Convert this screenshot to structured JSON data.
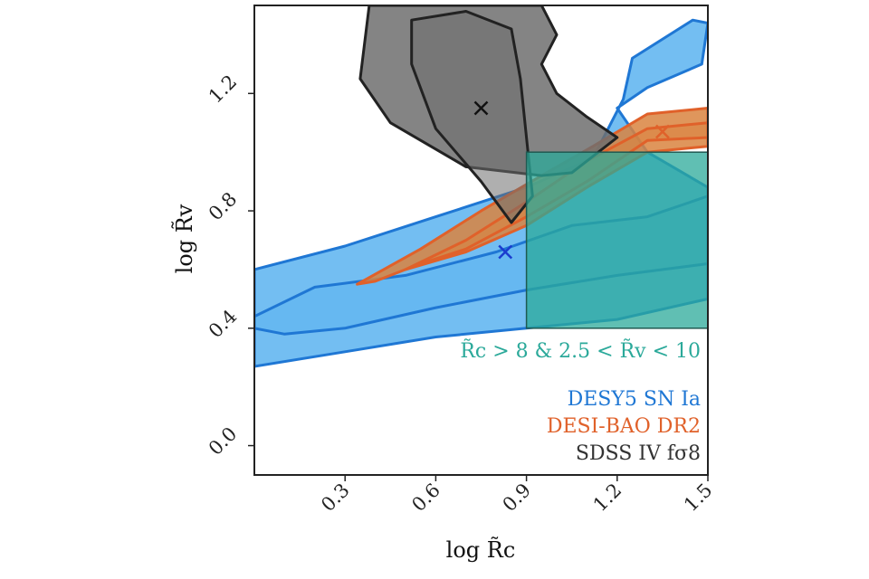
{
  "chart_data": {
    "type": "contour",
    "title": "",
    "xlabel": "log R̃c",
    "ylabel": "log R̃v",
    "xlim": [
      0.0,
      1.5
    ],
    "ylim": [
      -0.1,
      1.5
    ],
    "xticks": [
      0.3,
      0.6,
      0.9,
      1.2,
      1.5
    ],
    "xtick_labels": [
      "0.3",
      "0.6",
      "0.9",
      "1.2",
      "1.5"
    ],
    "yticks": [
      0.0,
      0.4,
      0.8,
      1.2
    ],
    "ytick_labels": [
      "0.0",
      "0.4",
      "0.8",
      "1.2"
    ],
    "grid": false,
    "legend_position": "bottom-right",
    "series": [
      {
        "name": "DESY5 SN Ia",
        "color": "#1f77d4",
        "fill": "#5bb3f0",
        "best_fit": {
          "x": 0.83,
          "y": 0.66
        },
        "contours": {
          "outer": [
            [
              0.0,
              0.6
            ],
            [
              0.3,
              0.68
            ],
            [
              0.6,
              0.78
            ],
            [
              0.9,
              0.88
            ],
            [
              1.12,
              0.98
            ],
            [
              1.22,
              1.18
            ],
            [
              1.25,
              1.32
            ],
            [
              1.45,
              1.45
            ],
            [
              1.5,
              1.44
            ],
            [
              1.48,
              1.3
            ],
            [
              1.3,
              1.22
            ],
            [
              1.2,
              1.15
            ],
            [
              1.3,
              1.0
            ],
            [
              1.5,
              0.88
            ],
            [
              1.5,
              0.5
            ],
            [
              1.2,
              0.43
            ],
            [
              0.9,
              0.4
            ],
            [
              0.6,
              0.37
            ],
            [
              0.3,
              0.32
            ],
            [
              0.0,
              0.27
            ]
          ],
          "inner": [
            [
              0.0,
              0.44
            ],
            [
              0.2,
              0.54
            ],
            [
              0.5,
              0.58
            ],
            [
              0.8,
              0.66
            ],
            [
              1.05,
              0.75
            ],
            [
              1.3,
              0.78
            ],
            [
              1.5,
              0.85
            ],
            [
              1.5,
              0.62
            ],
            [
              1.2,
              0.58
            ],
            [
              0.9,
              0.53
            ],
            [
              0.6,
              0.47
            ],
            [
              0.3,
              0.4
            ],
            [
              0.1,
              0.38
            ],
            [
              0.0,
              0.4
            ]
          ]
        }
      },
      {
        "name": "DESI-BAO DR2",
        "color": "#e0612a",
        "fill": "#d9843f",
        "best_fit": {
          "x": 1.35,
          "y": 1.07
        },
        "contours": {
          "outer": [
            [
              0.34,
              0.55
            ],
            [
              0.55,
              0.67
            ],
            [
              0.75,
              0.8
            ],
            [
              0.95,
              0.92
            ],
            [
              1.12,
              1.02
            ],
            [
              1.3,
              1.13
            ],
            [
              1.5,
              1.15
            ],
            [
              1.5,
              1.02
            ],
            [
              1.3,
              1.0
            ],
            [
              1.1,
              0.88
            ],
            [
              0.9,
              0.75
            ],
            [
              0.7,
              0.66
            ],
            [
              0.5,
              0.6
            ],
            [
              0.4,
              0.56
            ]
          ],
          "inner": [
            [
              0.5,
              0.6
            ],
            [
              0.7,
              0.7
            ],
            [
              0.9,
              0.83
            ],
            [
              1.1,
              0.97
            ],
            [
              1.3,
              1.08
            ],
            [
              1.5,
              1.1
            ],
            [
              1.5,
              1.05
            ],
            [
              1.3,
              1.04
            ],
            [
              1.1,
              0.9
            ],
            [
              0.9,
              0.78
            ],
            [
              0.7,
              0.67
            ],
            [
              0.55,
              0.62
            ]
          ]
        }
      },
      {
        "name": "SDSS IV fσ8",
        "color": "#222222",
        "fill": "#6e6e6e",
        "best_fit": {
          "x": 0.75,
          "y": 1.15
        },
        "contours": {
          "outer": [
            [
              0.38,
              1.5
            ],
            [
              0.35,
              1.25
            ],
            [
              0.45,
              1.1
            ],
            [
              0.7,
              0.95
            ],
            [
              0.95,
              0.92
            ],
            [
              1.05,
              0.93
            ],
            [
              1.2,
              1.05
            ],
            [
              1.1,
              1.12
            ],
            [
              1.0,
              1.2
            ],
            [
              0.95,
              1.3
            ],
            [
              1.0,
              1.4
            ],
            [
              0.95,
              1.5
            ]
          ],
          "inner": [
            [
              0.52,
              1.45
            ],
            [
              0.52,
              1.3
            ],
            [
              0.6,
              1.08
            ],
            [
              0.75,
              0.9
            ],
            [
              0.85,
              0.76
            ],
            [
              0.92,
              0.85
            ],
            [
              0.9,
              1.05
            ],
            [
              0.88,
              1.25
            ],
            [
              0.85,
              1.42
            ],
            [
              0.7,
              1.48
            ]
          ]
        }
      }
    ],
    "region": {
      "label": "R̃c > 8 & 2.5 < R̃v < 10",
      "x": [
        0.9,
        1.5
      ],
      "y": [
        0.4,
        1.0
      ],
      "color": "#2ba99a"
    }
  },
  "legend": {
    "items": [
      "DESY5 SN Ia",
      "DESI-BAO DR2",
      "SDSS IV fσ8"
    ]
  }
}
